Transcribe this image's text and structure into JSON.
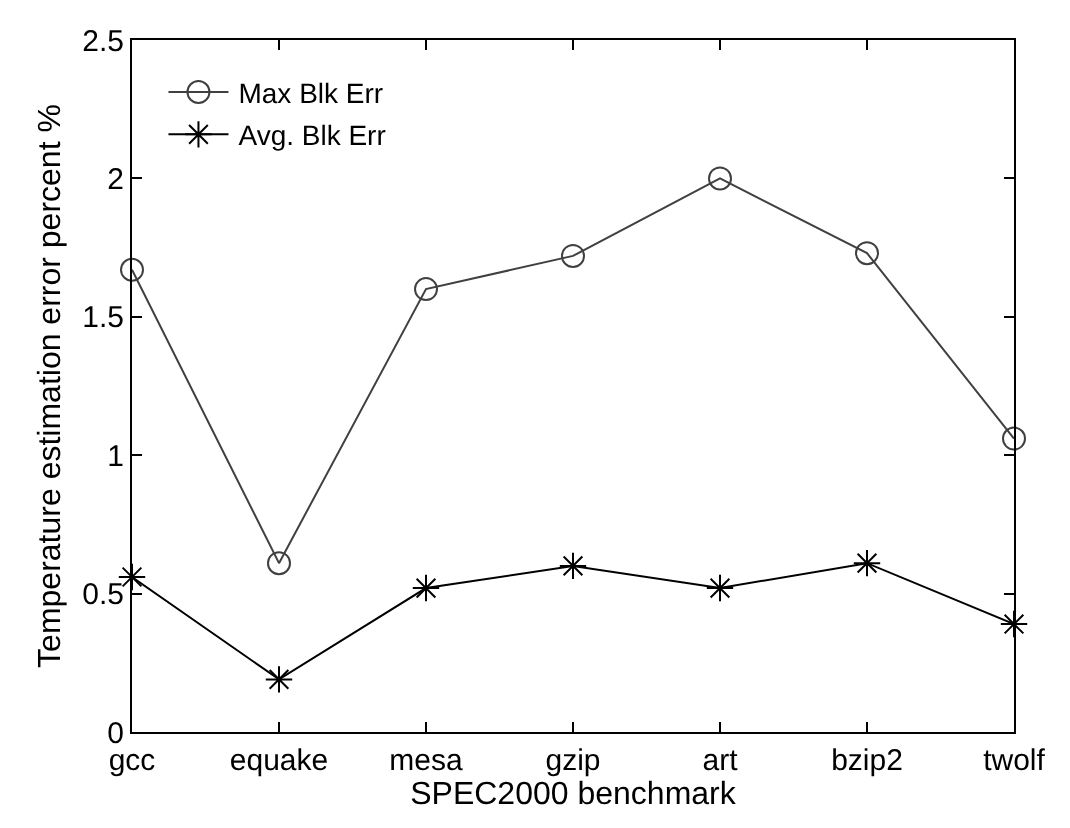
{
  "chart_data": {
    "type": "line",
    "xlabel": "SPEC2000 benchmark",
    "ylabel": "Temperature estimation error percent %",
    "categories": [
      "gcc",
      "equake",
      "mesa",
      "gzip",
      "art",
      "bzip2",
      "twolf"
    ],
    "series": [
      {
        "name": "Max Blk Err",
        "color": "#404040",
        "marker": "circle",
        "values": [
          1.67,
          0.61,
          1.6,
          1.72,
          2.0,
          1.73,
          1.06
        ]
      },
      {
        "name": "Avg. Blk Err",
        "color": "#000000",
        "marker": "cross",
        "values": [
          0.56,
          0.19,
          0.52,
          0.6,
          0.52,
          0.61,
          0.39
        ]
      }
    ],
    "ylim": [
      0,
      2.5
    ],
    "yticks": [
      0,
      0.5,
      1,
      1.5,
      2,
      2.5
    ],
    "grid": false,
    "legend": "top left",
    "line_style": "solid"
  }
}
